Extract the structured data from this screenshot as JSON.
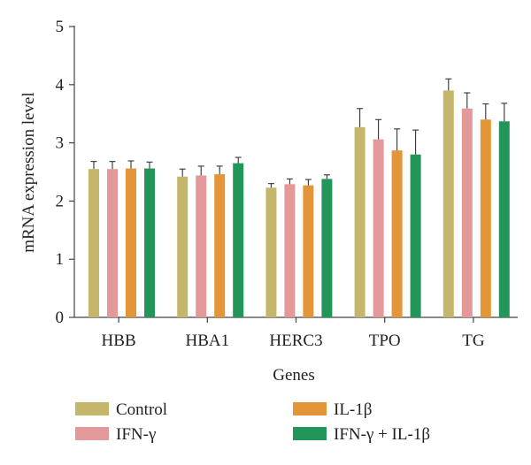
{
  "chart_data": {
    "type": "bar",
    "title": "",
    "xlabel": "Genes",
    "ylabel": "mRNA expression level",
    "ylim": [
      0,
      5
    ],
    "yticks": [
      "0",
      "1",
      "2",
      "3",
      "4",
      "5"
    ],
    "grid": false,
    "legend_position": "bottom",
    "categories": [
      "HBB",
      "HBA1",
      "HERC3",
      "TPO",
      "TG"
    ],
    "series": [
      {
        "name": "Control",
        "color": "#c4b66a",
        "values": [
          2.55,
          2.42,
          2.23,
          3.27,
          3.9
        ],
        "errors": [
          0.13,
          0.13,
          0.07,
          0.32,
          0.2
        ]
      },
      {
        "name": "IFN-γ",
        "color": "#e3999a",
        "values": [
          2.55,
          2.44,
          2.29,
          3.06,
          3.59
        ],
        "errors": [
          0.13,
          0.16,
          0.09,
          0.34,
          0.27
        ]
      },
      {
        "name": "IL-1β",
        "color": "#e39537",
        "values": [
          2.56,
          2.46,
          2.27,
          2.87,
          3.4
        ],
        "errors": [
          0.13,
          0.14,
          0.1,
          0.37,
          0.27
        ]
      },
      {
        "name": "IFN-γ + IL-1β",
        "color": "#229558",
        "values": [
          2.56,
          2.65,
          2.38,
          2.8,
          3.37
        ],
        "errors": [
          0.11,
          0.1,
          0.07,
          0.42,
          0.31
        ]
      }
    ]
  }
}
